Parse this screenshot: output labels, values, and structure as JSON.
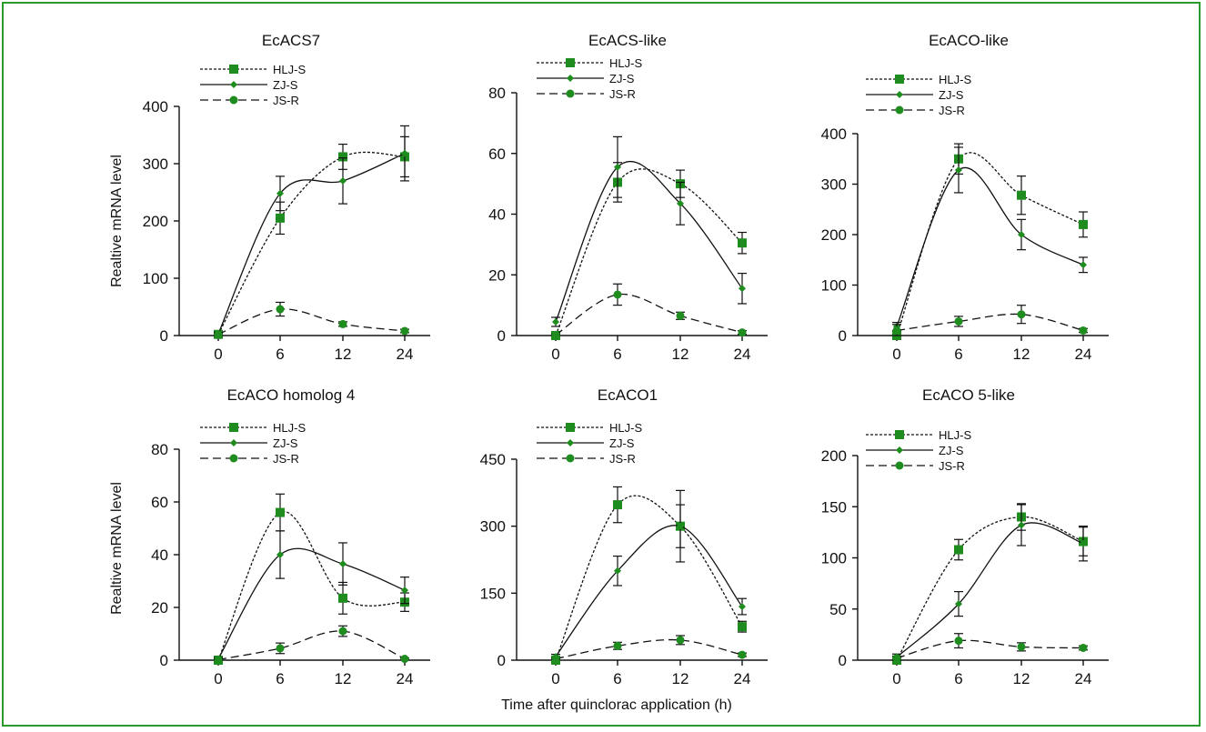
{
  "figure": {
    "ylabel": "Realtive mRNA level",
    "xlabel": "Time after quinclorac application (h)"
  },
  "chart_data": [
    {
      "type": "line",
      "title": "EcACS7",
      "categories": [
        "0",
        "6",
        "12",
        "24"
      ],
      "ylim": [
        0,
        400
      ],
      "yticks": [
        0,
        100,
        200,
        300,
        400
      ],
      "series": [
        {
          "name": "HLJ-S",
          "values": [
            2,
            205,
            312,
            312
          ],
          "err": [
            3,
            28,
            22,
            35
          ],
          "marker": "square",
          "dash": "dotted"
        },
        {
          "name": "ZJ-S",
          "values": [
            3,
            248,
            270,
            318
          ],
          "err": [
            3,
            30,
            40,
            48
          ],
          "marker": "diamond",
          "dash": "solid"
        },
        {
          "name": "JS-R",
          "values": [
            2,
            46,
            20,
            8
          ],
          "err": [
            2,
            12,
            4,
            3
          ],
          "marker": "circle",
          "dash": "dashed"
        }
      ]
    },
    {
      "type": "line",
      "title": "EcACS-like",
      "categories": [
        "0",
        "6",
        "12",
        "24"
      ],
      "ylim": [
        0,
        80
      ],
      "yticks": [
        0,
        20,
        40,
        60,
        80
      ],
      "series": [
        {
          "name": "HLJ-S",
          "values": [
            0,
            50.5,
            50,
            30.5
          ],
          "err": [
            0.5,
            6.5,
            4.5,
            3.5
          ],
          "marker": "square",
          "dash": "dotted"
        },
        {
          "name": "ZJ-S",
          "values": [
            4.5,
            55.5,
            43.5,
            15.5
          ],
          "err": [
            1.5,
            10,
            7,
            5
          ],
          "marker": "diamond",
          "dash": "solid"
        },
        {
          "name": "JS-R",
          "values": [
            0.2,
            13.5,
            6.5,
            1
          ],
          "err": [
            0.3,
            3.5,
            1.2,
            0.6
          ],
          "marker": "circle",
          "dash": "dashed"
        }
      ]
    },
    {
      "type": "line",
      "title": "EcACO-like",
      "categories": [
        "0",
        "6",
        "12",
        "24"
      ],
      "ylim": [
        0,
        400
      ],
      "yticks": [
        0,
        100,
        200,
        300,
        400
      ],
      "series": [
        {
          "name": "HLJ-S",
          "values": [
            0,
            350,
            278,
            220
          ],
          "err": [
            5,
            30,
            38,
            25
          ],
          "marker": "square",
          "dash": "dotted"
        },
        {
          "name": "ZJ-S",
          "values": [
            18,
            328,
            200,
            140
          ],
          "err": [
            8,
            45,
            30,
            15
          ],
          "marker": "diamond",
          "dash": "solid"
        },
        {
          "name": "JS-R",
          "values": [
            10,
            28,
            42,
            10
          ],
          "err": [
            12,
            10,
            18,
            4
          ],
          "marker": "circle",
          "dash": "dashed"
        }
      ]
    },
    {
      "type": "line",
      "title": "EcACO homolog 4",
      "categories": [
        "0",
        "6",
        "12",
        "24"
      ],
      "ylim": [
        0,
        80
      ],
      "yticks": [
        0,
        20,
        40,
        60,
        80
      ],
      "series": [
        {
          "name": "HLJ-S",
          "values": [
            0,
            56,
            23.5,
            22
          ],
          "err": [
            0.5,
            7,
            6,
            3.5
          ],
          "marker": "square",
          "dash": "dotted"
        },
        {
          "name": "ZJ-S",
          "values": [
            0.5,
            40,
            36.5,
            26.5
          ],
          "err": [
            0.5,
            9,
            8,
            5
          ],
          "marker": "diamond",
          "dash": "solid"
        },
        {
          "name": "JS-R",
          "values": [
            0.2,
            4.5,
            11,
            0.5
          ],
          "err": [
            0.3,
            2,
            2,
            0.3
          ],
          "marker": "circle",
          "dash": "dashed"
        }
      ]
    },
    {
      "type": "line",
      "title": "EcACO1",
      "categories": [
        "0",
        "6",
        "12",
        "24"
      ],
      "ylim": [
        0,
        450
      ],
      "yticks": [
        0,
        150,
        300,
        450
      ],
      "series": [
        {
          "name": "HLJ-S",
          "values": [
            0,
            348,
            300,
            75
          ],
          "err": [
            5,
            40,
            48,
            12
          ],
          "marker": "square",
          "dash": "dotted"
        },
        {
          "name": "ZJ-S",
          "values": [
            8,
            200,
            300,
            120
          ],
          "err": [
            5,
            33,
            80,
            18
          ],
          "marker": "diamond",
          "dash": "solid"
        },
        {
          "name": "JS-R",
          "values": [
            3,
            32,
            45,
            12
          ],
          "err": [
            2,
            8,
            10,
            4
          ],
          "marker": "circle",
          "dash": "dashed"
        }
      ]
    },
    {
      "type": "line",
      "title": "EcACO 5-like",
      "categories": [
        "0",
        "6",
        "12",
        "24"
      ],
      "ylim": [
        0,
        200
      ],
      "yticks": [
        0,
        50,
        100,
        150,
        200
      ],
      "series": [
        {
          "name": "HLJ-S",
          "values": [
            0,
            108,
            140,
            116
          ],
          "err": [
            3,
            10,
            13,
            14
          ],
          "marker": "square",
          "dash": "dotted"
        },
        {
          "name": "ZJ-S",
          "values": [
            3,
            55,
            132,
            114
          ],
          "err": [
            3,
            12,
            20,
            17
          ],
          "marker": "diamond",
          "dash": "solid"
        },
        {
          "name": "JS-R",
          "values": [
            2,
            19,
            13,
            12
          ],
          "err": [
            2,
            7,
            4,
            2
          ],
          "marker": "circle",
          "dash": "dashed"
        }
      ]
    }
  ],
  "style": {
    "frame_color": "#2a9a2a",
    "marker_color": "#1e8c1e",
    "line_color": "#111111"
  }
}
